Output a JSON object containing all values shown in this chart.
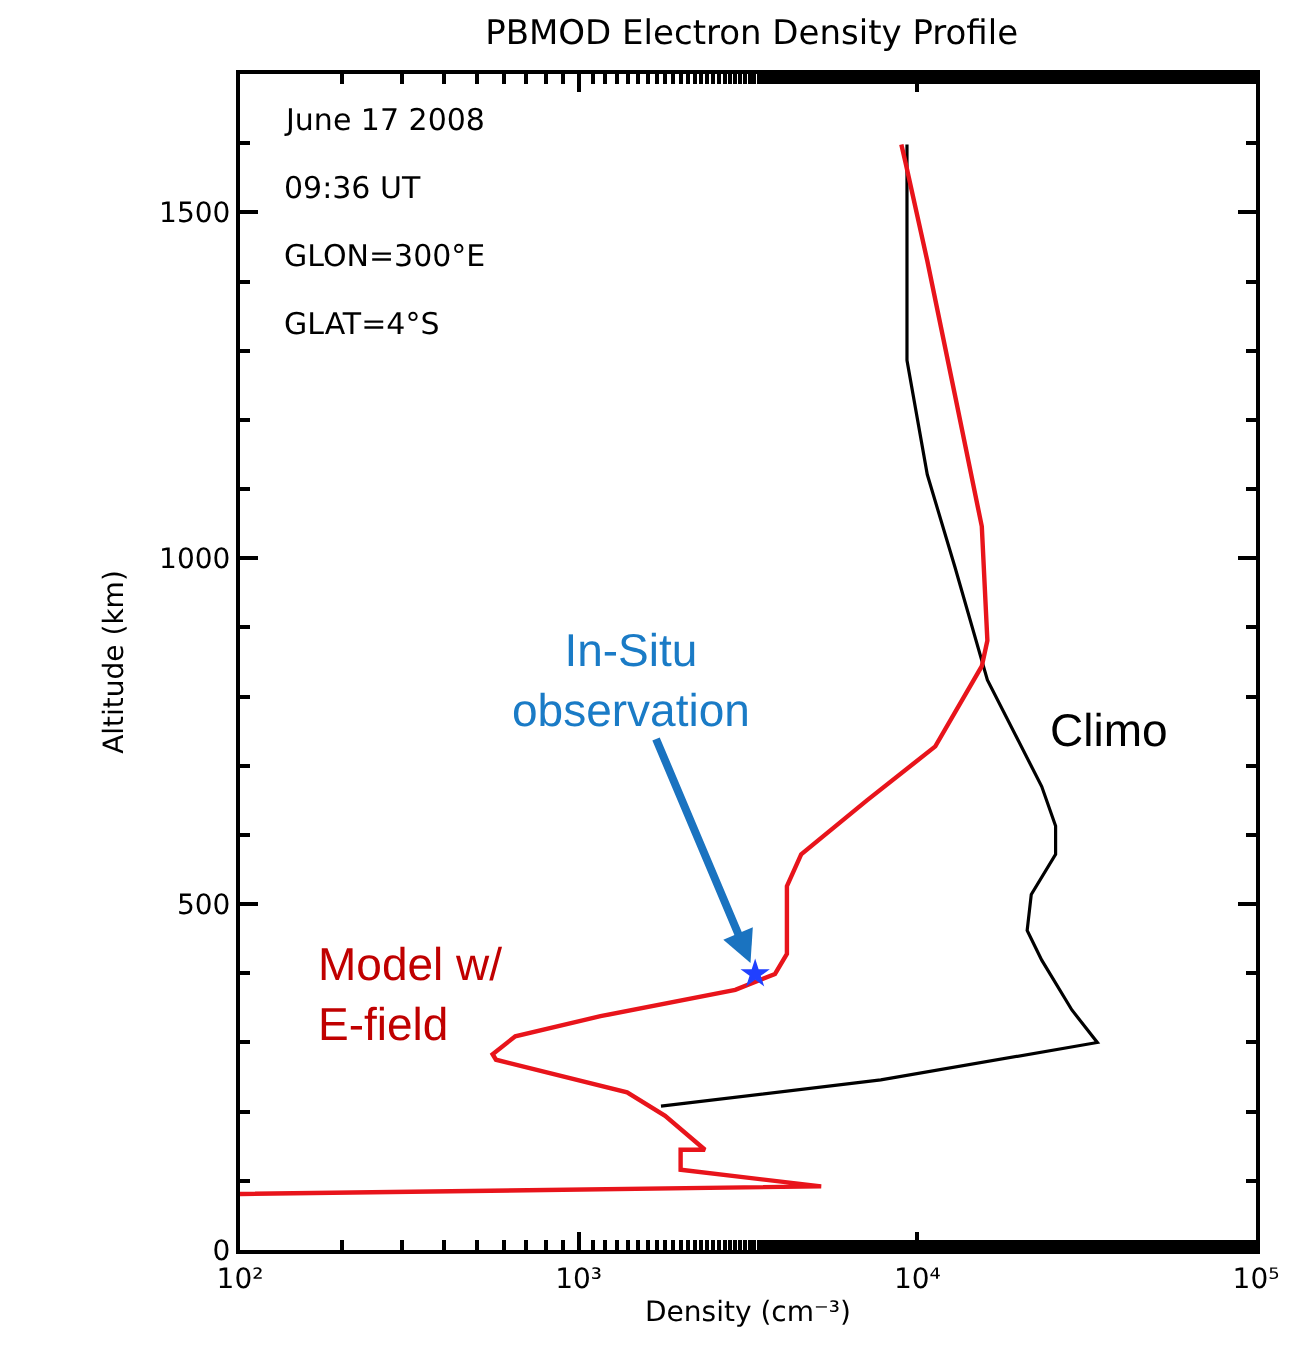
{
  "chart_data": {
    "type": "line",
    "title": "PBMOD Electron Density Profile",
    "xlabel": "Density (cm⁻³)",
    "ylabel": "Altitude (km)",
    "log": "x",
    "xlim": [
      100,
      100000
    ],
    "xticks": [
      {
        "value": 100,
        "label": "10²"
      },
      {
        "value": 1000,
        "label": "10³"
      },
      {
        "value": 10000,
        "label": "10⁴"
      },
      {
        "value": 100000,
        "label": "10⁵"
      }
    ],
    "ylim": [
      0,
      1700
    ],
    "yticks": [
      0,
      500,
      1000,
      1500
    ],
    "grid": false,
    "marker": "none",
    "line_style": "solid",
    "series": [
      {
        "name": "Climo",
        "color": "#000000",
        "x": [
          1750,
          7800,
          34000,
          28600,
          23300,
          21100,
          21700,
          25600,
          25600,
          23300,
          16100,
          12900,
          10700,
          9320,
          9320
        ],
        "values": [
          208,
          246,
          300,
          347,
          419,
          462,
          514,
          572,
          613,
          670,
          824,
          988,
          1121,
          1286,
          1598
        ]
      },
      {
        "name": "Model w/ E-field",
        "color": "#e8141b",
        "x": [
          100,
          5200,
          2000,
          2000,
          2360,
          1800,
          1390,
          570,
          557,
          650,
          1160,
          2900,
          3800,
          4120,
          4120,
          4540,
          7100,
          11300,
          15500,
          16100,
          15500,
          12900,
          10700,
          9200,
          8970
        ],
        "values": [
          81,
          92,
          116,
          145,
          145,
          194,
          228,
          275,
          283,
          309,
          338,
          376,
          399,
          428,
          526,
          572,
          650,
          728,
          844,
          881,
          1046,
          1237,
          1430,
          1575,
          1598
        ]
      },
      {
        "type": "scatter",
        "color": "#2040ff",
        "marker": "star",
        "x": [
          3320
        ],
        "values": [
          399
        ]
      }
    ],
    "annotations": [
      "June 17 2008",
      "09:36 UT",
      "GLON=300°E",
      "GLAT=4°S",
      {
        "text": "In-Situ observation",
        "x": 3320,
        "y": 399
      }
    ]
  }
}
